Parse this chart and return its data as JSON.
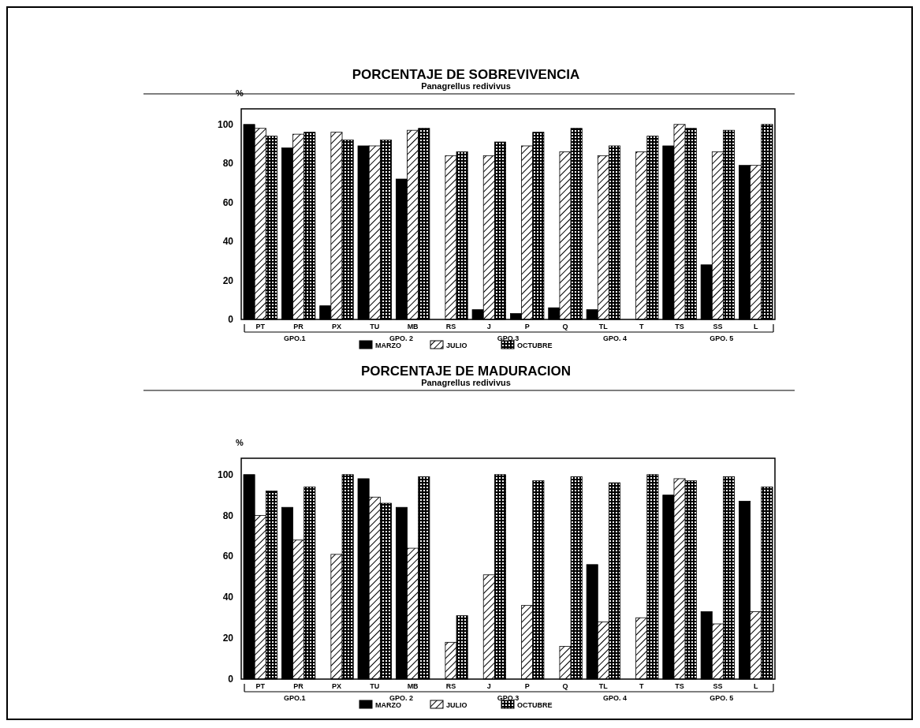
{
  "chart_data": [
    {
      "type": "bar",
      "title": "PORCENTAJE DE SOBREVIVENCIA",
      "subtitle": "Panagrellus redivivus",
      "ylabel": "%",
      "categories": [
        "PT",
        "PR",
        "PX",
        "TU",
        "MB",
        "RS",
        "J",
        "P",
        "Q",
        "TL",
        "T",
        "TS",
        "SS",
        "L"
      ],
      "series": [
        {
          "name": "MARZO",
          "color": "#000000",
          "values": [
            100,
            88,
            7,
            89,
            72,
            0,
            5,
            3,
            6,
            5,
            0,
            89,
            28,
            79
          ]
        },
        {
          "name": "JULIO",
          "color": "#000000",
          "values": [
            98,
            95,
            96,
            89,
            97,
            84,
            84,
            89,
            86,
            84,
            86,
            100,
            86,
            79
          ]
        },
        {
          "name": "OCTUBRE",
          "color": "#000000",
          "values": [
            94,
            96,
            92,
            92,
            98,
            86,
            91,
            96,
            98,
            89,
            94,
            98,
            97,
            100
          ]
        }
      ],
      "ylim": [
        0,
        108
      ],
      "yticks": [
        0,
        20,
        40,
        60,
        80,
        100
      ],
      "grid": false,
      "legend": "bottom",
      "annotations": [
        "GPO.1",
        "GPO. 2",
        "GPO.3",
        "GPO. 4",
        "GPO. 5"
      ]
    },
    {
      "type": "bar",
      "title": "PORCENTAJE DE MADURACION",
      "subtitle": "Panagrellus redivivus",
      "ylabel": "%",
      "categories": [
        "PT",
        "PR",
        "PX",
        "TU",
        "MB",
        "RS",
        "J",
        "P",
        "Q",
        "TL",
        "T",
        "TS",
        "SS",
        "L"
      ],
      "series": [
        {
          "name": "MARZO",
          "color": "#000000",
          "values": [
            100,
            84,
            0,
            98,
            84,
            0,
            0,
            0,
            0,
            56,
            0,
            90,
            33,
            87
          ]
        },
        {
          "name": "JULIO",
          "color": "#000000",
          "values": [
            80,
            68,
            61,
            89,
            64,
            18,
            51,
            36,
            16,
            28,
            30,
            98,
            27,
            33
          ]
        },
        {
          "name": "OCTUBRE",
          "color": "#000000",
          "values": [
            92,
            94,
            100,
            86,
            99,
            31,
            100,
            97,
            99,
            96,
            100,
            97,
            99,
            94
          ]
        }
      ],
      "ylim": [
        0,
        108
      ],
      "yticks": [
        0,
        20,
        40,
        60,
        80,
        100
      ],
      "grid": false,
      "legend": "bottom",
      "annotations": [
        "GPO.1",
        "GPO. 2",
        "GPO.3",
        "GPO. 4",
        "GPO. 5"
      ]
    }
  ]
}
